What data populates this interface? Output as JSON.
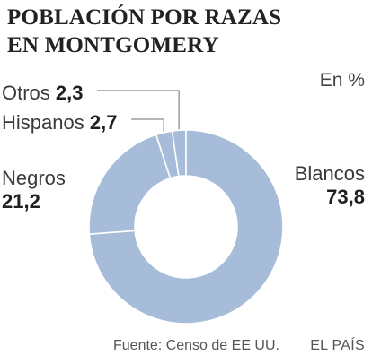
{
  "title_lines": [
    "POBLACIÓN POR RAZAS",
    "EN MONTGOMERY"
  ],
  "unit": "En %",
  "source": "Fuente: Censo de EE UU.",
  "credit": "EL PAÍS",
  "colors": {
    "slice": "#a6bcd8",
    "separator": "#ffffff",
    "leader": "#8a8a8a"
  },
  "chart_data": {
    "type": "pie",
    "variant": "donut",
    "title": "POBLACIÓN POR RAZAS EN MONTGOMERY",
    "unit": "En %",
    "categories": [
      "Blancos",
      "Negros",
      "Hispanos",
      "Otros"
    ],
    "values": [
      73.8,
      21.2,
      2.7,
      2.3
    ],
    "value_labels": [
      "73,8",
      "21,2",
      "2,7",
      "2,3"
    ]
  }
}
